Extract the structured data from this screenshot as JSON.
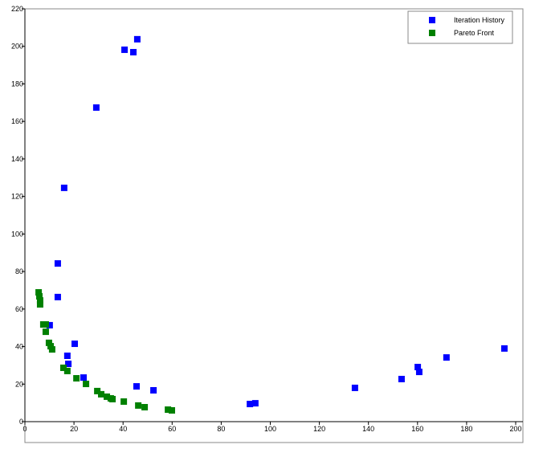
{
  "chart_data": {
    "type": "scatter",
    "xlim": [
      0,
      200
    ],
    "xticks": [
      0,
      20,
      40,
      60,
      80,
      100,
      120,
      140,
      160,
      180,
      200
    ],
    "ylim": [
      0,
      220
    ],
    "yticks": [
      0,
      20,
      40,
      60,
      80,
      100,
      120,
      140,
      160,
      180,
      200,
      220
    ],
    "legend": "upper right",
    "series": [
      {
        "name": "Iteration History",
        "color": "#0000ff",
        "x": [
          45.8,
          40.6,
          44.2,
          29.1,
          16.0,
          13.4,
          13.4,
          10.1,
          20.3,
          17.3,
          17.7,
          23.9,
          45.5,
          52.4,
          134.5,
          153.5,
          160.1,
          160.7,
          171.8,
          195.4,
          91.7,
          93.9
        ],
        "values": [
          203.8,
          198.2,
          196.9,
          167.4,
          124.6,
          84.3,
          66.4,
          51.4,
          41.5,
          35.1,
          30.8,
          23.5,
          18.8,
          16.7,
          18.0,
          22.7,
          29.1,
          26.5,
          34.2,
          39.0,
          9.4,
          9.8
        ]
      },
      {
        "name": "Pareto Front",
        "color": "#008000",
        "x": [
          5.6,
          5.9,
          6.2,
          6.2,
          7.5,
          8.5,
          8.5,
          9.8,
          10.5,
          11.1,
          15.7,
          17.3,
          21.0,
          24.9,
          29.5,
          31.1,
          33.4,
          35.0,
          35.7,
          40.3,
          46.2,
          48.8,
          58.3,
          59.9
        ],
        "values": [
          68.9,
          66.8,
          64.6,
          62.5,
          51.8,
          51.8,
          47.9,
          42.0,
          40.2,
          38.5,
          28.7,
          27.0,
          23.1,
          20.1,
          16.3,
          14.6,
          13.3,
          12.4,
          12.0,
          10.7,
          8.6,
          7.7,
          6.4,
          6.0
        ]
      }
    ]
  }
}
